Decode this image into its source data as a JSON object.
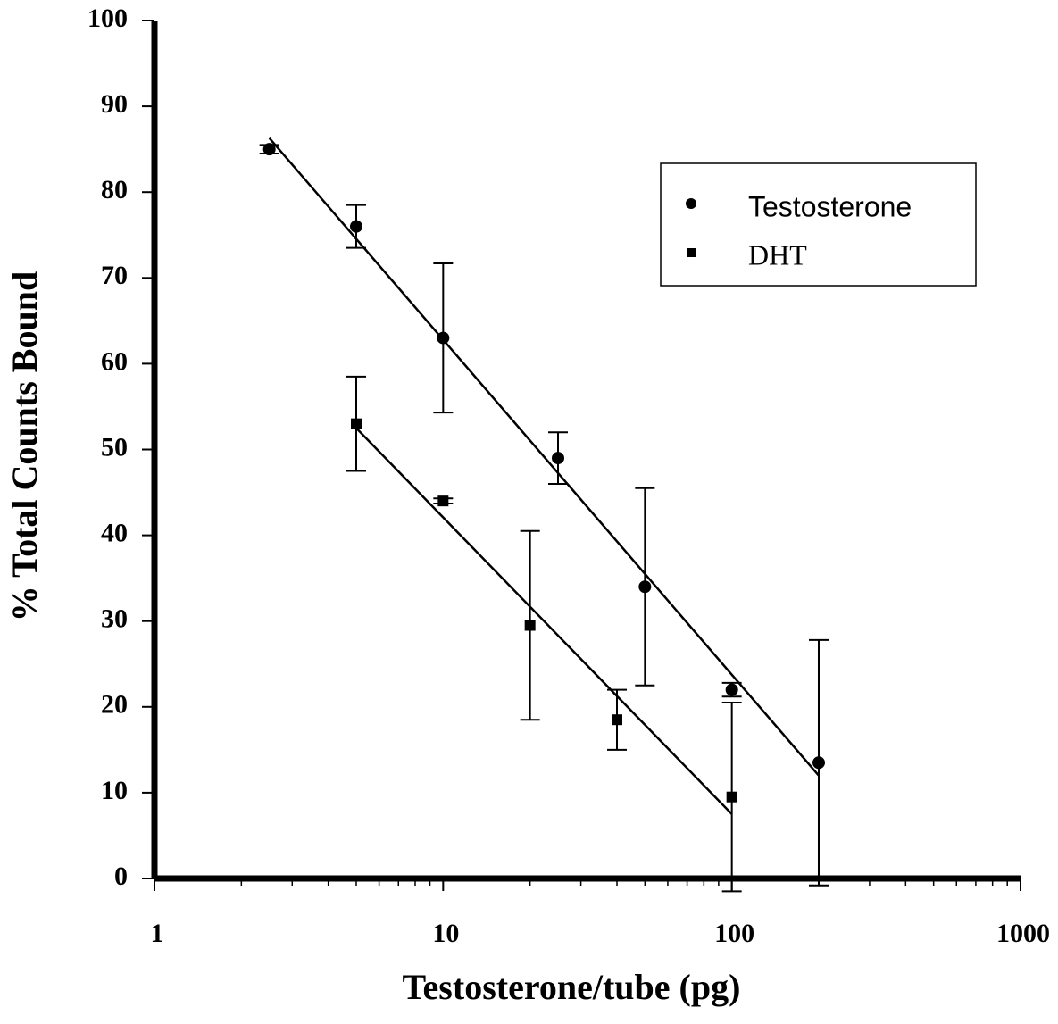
{
  "chart_data": {
    "type": "scatter",
    "x_label": "Testosterone/tube (pg)",
    "y_label": "% Total Counts Bound",
    "xscale": "log",
    "xlim": [
      1,
      1000
    ],
    "xticks": [
      1,
      10,
      100,
      1000
    ],
    "xminorticks": [
      2,
      3,
      4,
      5,
      6,
      7,
      8,
      9,
      20,
      30,
      40,
      50,
      60,
      70,
      80,
      90,
      200,
      300,
      400,
      500,
      600,
      700,
      800,
      900
    ],
    "ylim": [
      0,
      100
    ],
    "yticks": [
      0,
      10,
      20,
      30,
      40,
      50,
      60,
      70,
      80,
      90,
      100
    ],
    "legend": "upper right",
    "series": [
      {
        "name": "Testosterone",
        "color": "#000000",
        "marker": "circle",
        "x": [
          2.5,
          5,
          10,
          25,
          50,
          100,
          200
        ],
        "values": [
          85,
          76,
          63,
          49,
          34,
          22,
          13.5
        ],
        "errors": [
          0.5,
          2.5,
          8.7,
          3,
          11.5,
          0.8,
          14.3
        ],
        "fit": {
          "x": [
            2.5,
            200
          ],
          "values": [
            86.3,
            12
          ]
        }
      },
      {
        "name": "DHT",
        "color": "#000000",
        "marker": "square",
        "x": [
          5,
          10,
          20,
          40,
          100
        ],
        "values": [
          53,
          44,
          29.5,
          18.5,
          9.5
        ],
        "errors": [
          5.5,
          0.3,
          11,
          3.5,
          11
        ],
        "fit": {
          "x": [
            5,
            100
          ],
          "values": [
            52.5,
            7.5
          ]
        }
      }
    ]
  }
}
